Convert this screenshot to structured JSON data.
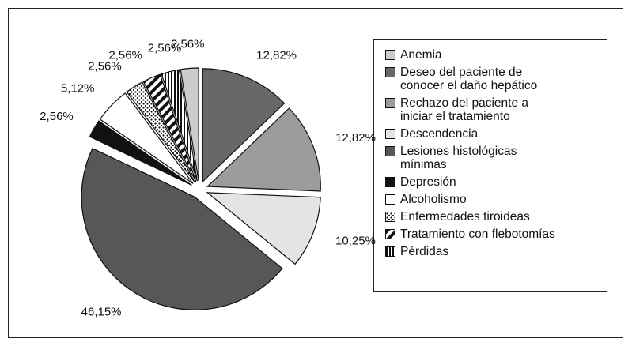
{
  "chart_data": {
    "type": "pie",
    "categories": [
      "Anemia",
      "Deseo del paciente de conocer el daño hepático",
      "Rechazo del paciente a iniciar el tratamiento",
      "Descendencia",
      "Lesiones histológicas mínimas",
      "Depresión",
      "Alcoholismo",
      "Enfermedades tiroideas",
      "Tratamiento con flebotomías",
      "Pérdidas"
    ],
    "values": [
      2.56,
      12.82,
      12.82,
      10.25,
      46.15,
      2.56,
      5.12,
      2.56,
      2.56,
      2.56
    ],
    "value_labels": [
      "2,56%",
      "12,82%",
      "12,82%",
      "10,25%",
      "46,15%",
      "2,56%",
      "5,12%",
      "2,56%",
      "2,56%",
      "2,56%"
    ],
    "colors": [
      "#cccccc",
      "#686868",
      "#9c9c9c",
      "#e4e4e4",
      "#575757",
      "#111111",
      "#ffffff",
      "url(#pat-dots)",
      "url(#pat-diag)",
      "url(#pat-vert)"
    ]
  }
}
